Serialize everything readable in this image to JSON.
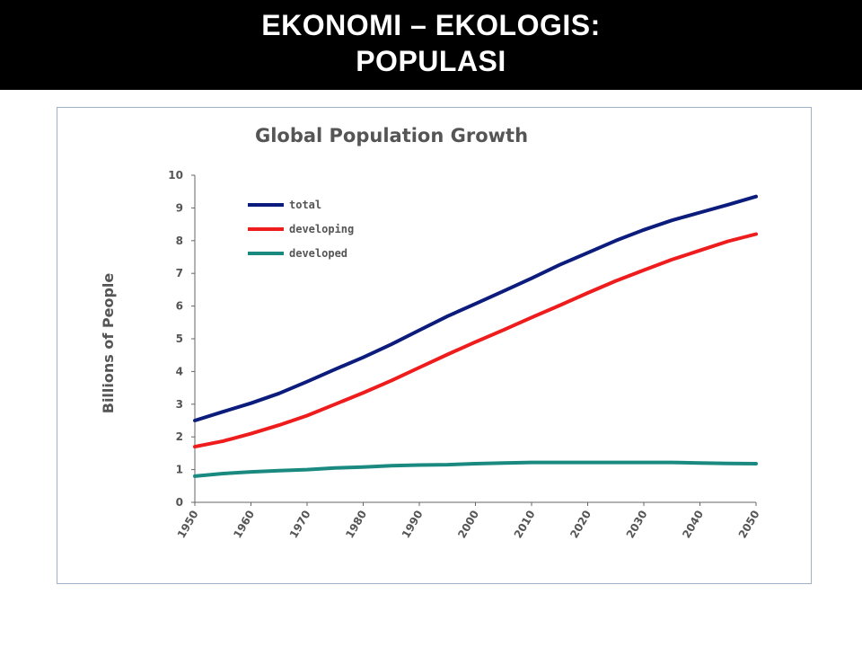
{
  "header": {
    "line1": "EKONOMI – EKOLOGIS:",
    "line2": "POPULASI"
  },
  "chart_data": {
    "type": "line",
    "title": "Global Population Growth",
    "ylabel": "Billions of People",
    "xlabel": "",
    "x": [
      1950,
      1955,
      1960,
      1965,
      1970,
      1975,
      1980,
      1985,
      1990,
      1995,
      2000,
      2005,
      2010,
      2015,
      2020,
      2025,
      2030,
      2035,
      2040,
      2045,
      2050
    ],
    "xticks": [
      "1950",
      "1960",
      "1970",
      "1980",
      "1990",
      "2000",
      "2010",
      "2020",
      "2030",
      "2040",
      "2050"
    ],
    "yticks": [
      "0",
      "1",
      "2",
      "3",
      "4",
      "5",
      "6",
      "7",
      "8",
      "9",
      "10"
    ],
    "ylim": [
      0,
      10
    ],
    "xlim": [
      1950,
      2050
    ],
    "grid": false,
    "legend_position": "top-left",
    "series": [
      {
        "name": "total",
        "color": "#0c1c7c",
        "values": [
          2.5,
          2.77,
          3.03,
          3.33,
          3.69,
          4.07,
          4.43,
          4.83,
          5.26,
          5.69,
          6.07,
          6.46,
          6.85,
          7.26,
          7.63,
          8.0,
          8.33,
          8.62,
          8.86,
          9.1,
          9.35
        ]
      },
      {
        "name": "developing",
        "color": "#ee1c1c",
        "values": [
          1.7,
          1.87,
          2.1,
          2.36,
          2.65,
          3.0,
          3.35,
          3.72,
          4.12,
          4.52,
          4.9,
          5.27,
          5.65,
          6.02,
          6.4,
          6.77,
          7.1,
          7.42,
          7.7,
          7.98,
          8.2
        ]
      },
      {
        "name": "developed",
        "color": "#1a8a80",
        "values": [
          0.8,
          0.88,
          0.93,
          0.97,
          1.0,
          1.05,
          1.08,
          1.12,
          1.14,
          1.15,
          1.18,
          1.2,
          1.22,
          1.22,
          1.22,
          1.22,
          1.22,
          1.22,
          1.2,
          1.19,
          1.18
        ]
      }
    ]
  }
}
